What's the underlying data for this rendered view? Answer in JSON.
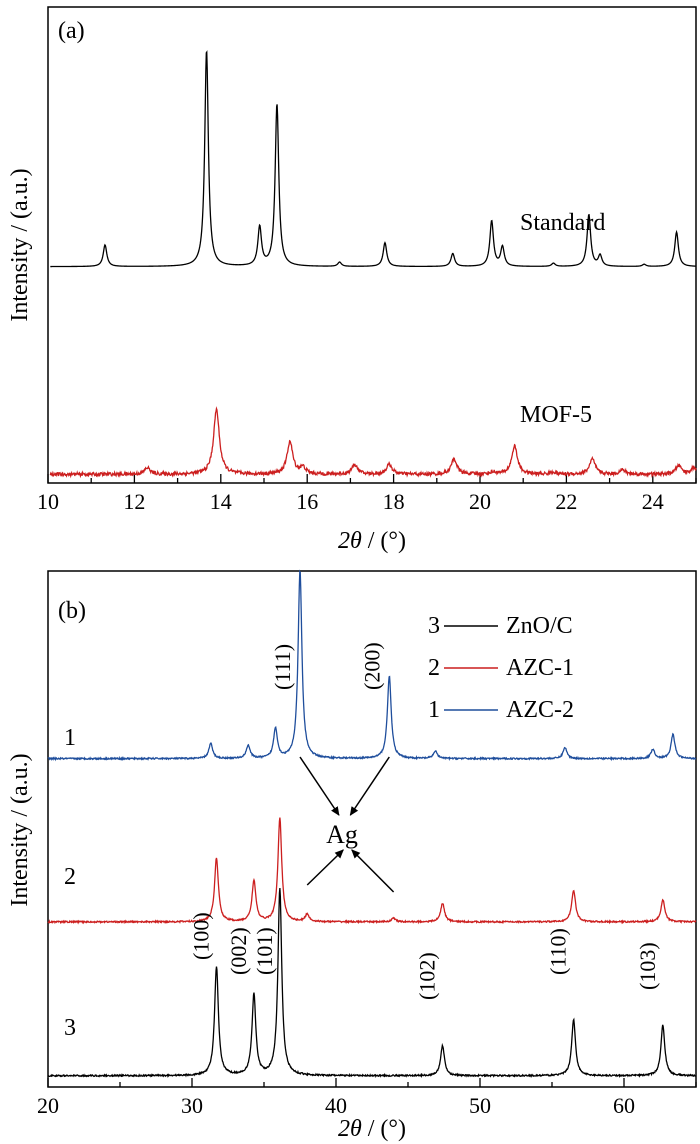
{
  "chart_data": [
    {
      "panel_label": "(a)",
      "type": "line",
      "xlabel": "2θ / (°)",
      "xlabel_parts": {
        "italic": "2θ",
        "rest": " / (°)"
      },
      "ylabel": "Intensity / (a.u.)",
      "xlim": [
        10,
        25
      ],
      "xticks": [
        10,
        12,
        14,
        16,
        18,
        20,
        22,
        24
      ],
      "yunits": "normalized intensity (a.u.)",
      "ylim": [
        0,
        2.2
      ],
      "series": [
        {
          "name": "Standard",
          "color": "#000000",
          "noise": 0.0,
          "baseline": 1.0,
          "peaks": [
            [
              11.32,
              0.1
            ],
            [
              13.67,
              1.0
            ],
            [
              14.9,
              0.18
            ],
            [
              15.3,
              0.75
            ],
            [
              16.75,
              0.02
            ],
            [
              17.8,
              0.11
            ],
            [
              19.37,
              0.06
            ],
            [
              20.27,
              0.21
            ],
            [
              20.52,
              0.09
            ],
            [
              21.7,
              0.015
            ],
            [
              22.52,
              0.24
            ],
            [
              22.78,
              0.05
            ],
            [
              23.8,
              0.01
            ],
            [
              24.55,
              0.16
            ]
          ],
          "peak_width": 0.05
        },
        {
          "name": "MOF-5",
          "color": "#cc1f1f",
          "noise": 0.008,
          "baseline": 0.04,
          "peaks": [
            [
              12.3,
              0.03
            ],
            [
              13.9,
              0.3
            ],
            [
              15.6,
              0.15
            ],
            [
              15.9,
              0.03
            ],
            [
              17.1,
              0.045
            ],
            [
              17.9,
              0.045
            ],
            [
              19.4,
              0.07
            ],
            [
              20.3,
              0.01
            ],
            [
              20.8,
              0.13
            ],
            [
              21.7,
              0.01
            ],
            [
              22.6,
              0.07
            ],
            [
              23.3,
              0.02
            ],
            [
              24.6,
              0.04
            ],
            [
              24.95,
              0.03
            ]
          ],
          "peak_width": 0.08
        }
      ]
    },
    {
      "panel_label": "(b)",
      "type": "line",
      "xlabel": "2θ / (°)",
      "xlabel_parts": {
        "italic": "2θ",
        "rest": " / (°)"
      },
      "ylabel": "Intensity / (a.u.)",
      "xlim": [
        20,
        65
      ],
      "xticks": [
        20,
        30,
        40,
        50,
        60
      ],
      "yunits": "normalized intensity (a.u.)",
      "ylim": [
        0,
        2.75
      ],
      "legend_position": "top-right",
      "series": [
        {
          "name": "AZC-2",
          "number": "1",
          "color": "#1f4e9c",
          "noise": 0.004,
          "baseline": 1.75,
          "peaks": [
            [
              31.3,
              0.08
            ],
            [
              33.9,
              0.07
            ],
            [
              35.8,
              0.16
            ],
            [
              37.5,
              1.0
            ],
            [
              43.7,
              0.44
            ],
            [
              46.9,
              0.04
            ],
            [
              55.9,
              0.06
            ],
            [
              62.0,
              0.05
            ],
            [
              63.4,
              0.13
            ]
          ],
          "peak_width": 0.16
        },
        {
          "name": "AZC-1",
          "number": "2",
          "color": "#cc1f1f",
          "noise": 0.004,
          "baseline": 0.88,
          "peaks": [
            [
              31.7,
              0.34
            ],
            [
              34.3,
              0.22
            ],
            [
              36.1,
              0.55
            ],
            [
              38.0,
              0.04
            ],
            [
              44.0,
              0.02
            ],
            [
              47.4,
              0.1
            ],
            [
              56.5,
              0.17
            ],
            [
              62.7,
              0.12
            ]
          ],
          "peak_width": 0.16
        },
        {
          "name": "ZnO/C",
          "number": "3",
          "color": "#000000",
          "noise": 0.004,
          "baseline": 0.06,
          "peaks": [
            [
              31.7,
              0.58
            ],
            [
              34.3,
              0.43
            ],
            [
              36.1,
              1.0
            ],
            [
              47.4,
              0.16
            ],
            [
              56.5,
              0.3
            ],
            [
              62.7,
              0.27
            ]
          ],
          "peak_width": 0.16
        }
      ],
      "annotations": {
        "ag_label": "Ag",
        "ag_peaks_top": [
          "(111)",
          "(200)"
        ],
        "ag_points": [
          [
            37.5,
            1.86
          ],
          [
            43.7,
            1.86
          ],
          [
            38.0,
            0.94
          ],
          [
            44.0,
            0.9
          ]
        ],
        "ag_target": [
          40.8,
          1.25
        ],
        "zno_peaks": [
          {
            "label": "(100)",
            "x": 31.7
          },
          {
            "label": "(002)",
            "x": 34.3
          },
          {
            "label": "(101)",
            "x": 36.1
          },
          {
            "label": "(102)",
            "x": 47.4
          },
          {
            "label": "(110)",
            "x": 56.5
          },
          {
            "label": "(103)",
            "x": 62.7
          }
        ],
        "ag_peak_labels": [
          {
            "label": "(111)",
            "x": 37.5
          },
          {
            "label": "(200)",
            "x": 43.7
          }
        ]
      }
    }
  ]
}
